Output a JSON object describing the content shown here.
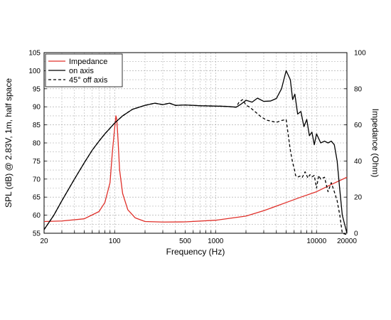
{
  "chart_data": {
    "type": "line",
    "xlabel": "Frequency (Hz)",
    "ylabel": "SPL (dB) @ 2.83V, 1m, half space",
    "y2label": "Impedance (Ohm)",
    "x_scale": "log",
    "xlim": [
      20,
      20000
    ],
    "ylim": [
      55,
      105
    ],
    "y2lim": [
      0,
      100
    ],
    "x_ticks": [
      20,
      100,
      500,
      1000,
      10000,
      20000
    ],
    "x_tick_labels": [
      "20",
      "100",
      "500",
      "1000",
      "10000",
      "20000"
    ],
    "y_ticks": [
      55,
      60,
      65,
      70,
      75,
      80,
      85,
      90,
      95,
      100,
      105
    ],
    "y_tick_labels": [
      "55",
      "60",
      "65",
      "70",
      "75",
      "80",
      "85",
      "90",
      "95",
      "100",
      "105"
    ],
    "y2_ticks": [
      0,
      20,
      40,
      60,
      80,
      100
    ],
    "y2_tick_labels": [
      "0",
      "20",
      "40",
      "60",
      "80",
      "100"
    ],
    "grid": true,
    "legend_position": "top-left",
    "series": [
      {
        "name": "Impedance",
        "axis": "right",
        "color": "#e0302a",
        "style": "solid",
        "x": [
          20,
          30,
          50,
          70,
          80,
          90,
          95,
          100,
          103,
          105,
          108,
          112,
          120,
          135,
          160,
          200,
          300,
          500,
          1000,
          2000,
          3000,
          5000,
          7000,
          10000,
          14000,
          20000
        ],
        "y": [
          6.5,
          6.8,
          8,
          12,
          17,
          28,
          45,
          58,
          65,
          63,
          52,
          35,
          22,
          13,
          8.5,
          6.5,
          6.2,
          6.3,
          7.2,
          9.5,
          12.5,
          17,
          20,
          23,
          27,
          31
        ]
      },
      {
        "name": "on axis",
        "axis": "left",
        "color": "#000000",
        "style": "solid",
        "x": [
          20,
          25,
          30,
          40,
          50,
          60,
          70,
          80,
          100,
          120,
          150,
          200,
          250,
          300,
          350,
          400,
          500,
          700,
          1000,
          1300,
          1600,
          1800,
          2000,
          2300,
          2600,
          3000,
          3500,
          4000,
          4500,
          5000,
          5500,
          5800,
          6100,
          6500,
          7000,
          7500,
          8000,
          8500,
          9000,
          9500,
          10000,
          11000,
          12000,
          13000,
          14000,
          15000,
          16000,
          17000,
          18000,
          20000
        ],
        "y": [
          56,
          60,
          64,
          70,
          74.5,
          78,
          80.5,
          82.5,
          85.5,
          87.5,
          89.3,
          90.4,
          91,
          90.6,
          91,
          90.4,
          90.5,
          90.3,
          90.2,
          90.1,
          89.9,
          90.8,
          91.8,
          91.3,
          92.4,
          91.5,
          91.6,
          92.3,
          95,
          100,
          97.5,
          92,
          93.5,
          88,
          88.7,
          84.5,
          86.5,
          82,
          83,
          79.5,
          82.5,
          80,
          80.5,
          80,
          80.5,
          79.5,
          75,
          67,
          60,
          55
        ]
      },
      {
        "name": "45° off axis",
        "axis": "left",
        "color": "#000000",
        "style": "dashed",
        "x": [
          20,
          25,
          30,
          40,
          50,
          60,
          70,
          80,
          100,
          120,
          150,
          200,
          250,
          300,
          350,
          400,
          500,
          700,
          1000,
          1300,
          1600,
          1700,
          1850,
          2000,
          2200,
          2500,
          2800,
          3200,
          3600,
          4000,
          4500,
          5000,
          5500,
          5800,
          6000,
          6200,
          6500,
          6800,
          7200,
          7700,
          8200,
          8600,
          9000,
          9500,
          10000,
          10500,
          11000,
          12000,
          13000,
          14000,
          15000,
          16000,
          17000,
          18000,
          20000
        ],
        "y": [
          56,
          60,
          64,
          70,
          74.5,
          78,
          80.5,
          82.5,
          85.5,
          87.5,
          89.3,
          90.4,
          91,
          90.6,
          91,
          90.4,
          90.5,
          90.3,
          90.2,
          90.1,
          89.9,
          91.2,
          92,
          90.5,
          89.8,
          88.5,
          87.3,
          86.3,
          86,
          85.7,
          86.2,
          86.5,
          78,
          74.5,
          73,
          71,
          70.5,
          70.8,
          70.4,
          72,
          70.3,
          71.2,
          70.6,
          71,
          67.5,
          71,
          70,
          70.5,
          66.5,
          69,
          66.5,
          64,
          60,
          55,
          53
        ]
      }
    ]
  }
}
